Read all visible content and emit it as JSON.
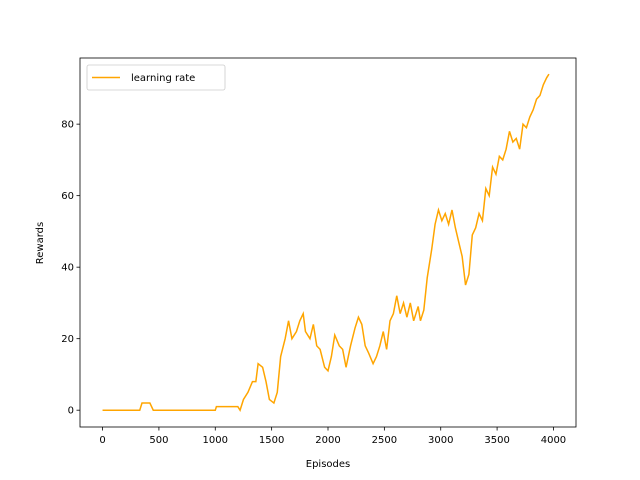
{
  "chart_data": {
    "type": "line",
    "x_label": "Episodes",
    "y_label": "Rewards",
    "xlim": [
      -200,
      4200
    ],
    "ylim": [
      -4.7,
      98.5
    ],
    "xticks": [
      0,
      500,
      1000,
      1500,
      2000,
      2500,
      3000,
      3500,
      4000
    ],
    "yticks": [
      0,
      20,
      40,
      60,
      80
    ],
    "legend": "upper left",
    "x": [
      0,
      330,
      350,
      420,
      450,
      1000,
      1010,
      1100,
      1200,
      1220,
      1250,
      1290,
      1330,
      1360,
      1380,
      1420,
      1450,
      1480,
      1520,
      1550,
      1580,
      1620,
      1650,
      1680,
      1720,
      1750,
      1780,
      1800,
      1840,
      1870,
      1900,
      1930,
      1970,
      2000,
      2030,
      2060,
      2100,
      2130,
      2160,
      2200,
      2240,
      2270,
      2300,
      2330,
      2360,
      2400,
      2430,
      2460,
      2490,
      2520,
      2550,
      2580,
      2610,
      2640,
      2670,
      2700,
      2730,
      2760,
      2800,
      2820,
      2850,
      2880,
      2920,
      2950,
      2980,
      3010,
      3040,
      3070,
      3100,
      3130,
      3160,
      3190,
      3220,
      3250,
      3280,
      3310,
      3340,
      3370,
      3400,
      3430,
      3460,
      3490,
      3520,
      3550,
      3580,
      3610,
      3640,
      3670,
      3700,
      3730,
      3760,
      3790,
      3820,
      3850,
      3880,
      3910,
      3940,
      3960
    ],
    "series": [
      {
        "name": "learning rate",
        "color": "#ffa500",
        "values": [
          0,
          0,
          2,
          2,
          0,
          0,
          1,
          1,
          1,
          0,
          3,
          5,
          8,
          8,
          13,
          12,
          8,
          3,
          2,
          5,
          15,
          20,
          25,
          20,
          22,
          25,
          27,
          22,
          20,
          24,
          18,
          17,
          12,
          11,
          15,
          21,
          18,
          17,
          12,
          18,
          23,
          26,
          24,
          18,
          16,
          13,
          15,
          18,
          22,
          17,
          25,
          27,
          32,
          27,
          30,
          26,
          30,
          25,
          29,
          25,
          28,
          37,
          45,
          52,
          56,
          53,
          55,
          52,
          56,
          51,
          47,
          43,
          35,
          38,
          49,
          51,
          55,
          53,
          62,
          60,
          68,
          66,
          71,
          70,
          73,
          78,
          75,
          76,
          73,
          80,
          79,
          82,
          84,
          87,
          88,
          91,
          93,
          94
        ]
      }
    ]
  }
}
